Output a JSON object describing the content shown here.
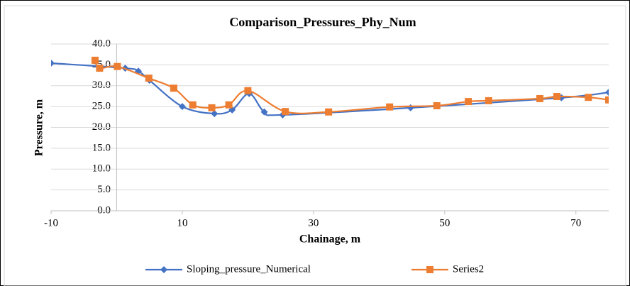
{
  "chart_data": {
    "type": "line",
    "title": "Comparison_Pressures_Phy_Num",
    "x_label": "Chainage, m",
    "y_label": "Pressure, m",
    "xlim": [
      -10,
      75
    ],
    "xticks": [
      -10,
      10,
      30,
      50,
      70
    ],
    "ylim": [
      0,
      40
    ],
    "yticks": [
      {
        "value": 0,
        "label": "0.0"
      },
      {
        "value": 5,
        "label": "5.0"
      },
      {
        "value": 10,
        "label": "10.0"
      },
      {
        "value": 15,
        "label": "15.0"
      },
      {
        "value": 20,
        "label": "20.0"
      },
      {
        "value": 25,
        "label": "25.0"
      },
      {
        "value": 30,
        "label": "30.0"
      },
      {
        "value": 35,
        "label": "35.0"
      },
      {
        "value": 40,
        "label": "40.0"
      }
    ],
    "grid": true,
    "legend": "bottom",
    "series": [
      {
        "name": "Sloping_pressure_Numerical",
        "color": "#4472c4",
        "marker": "diamond",
        "x": [
          -10,
          1.3,
          3.3,
          5.0,
          10,
          14.9,
          17.6,
          20.2,
          22.5,
          25.3,
          44.8,
          67.8,
          75
        ],
        "values": [
          35.4,
          34.2,
          33.5,
          31.3,
          25.0,
          23.3,
          24.2,
          28.1,
          23.7,
          23.0,
          24.7,
          27.1,
          28.4
        ]
      },
      {
        "name": "Series2",
        "color": "#ed7d31",
        "marker": "square",
        "x": [
          -3.3,
          -2.6,
          0.1,
          4.9,
          8.7,
          11.6,
          14.5,
          17.1,
          20.0,
          25.7,
          32.3,
          41.6,
          48.8,
          53.6,
          56.7,
          64.5,
          67.1,
          71.9,
          75
        ],
        "values": [
          36.1,
          34.2,
          34.6,
          31.8,
          29.4,
          25.4,
          24.7,
          25.4,
          28.8,
          23.8,
          23.7,
          24.9,
          25.2,
          26.2,
          26.4,
          26.9,
          27.4,
          27.2,
          26.6
        ]
      }
    ]
  }
}
